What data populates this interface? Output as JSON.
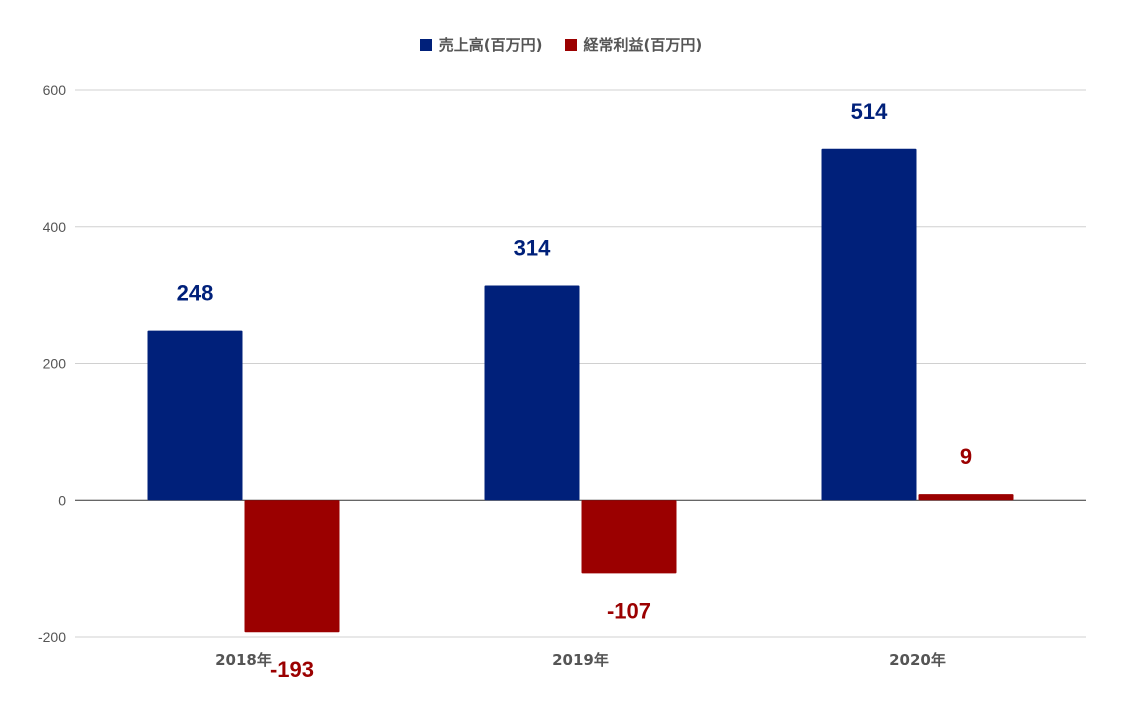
{
  "chart_data": {
    "type": "bar",
    "categories": [
      "2018年",
      "2019年",
      "2020年"
    ],
    "series": [
      {
        "name": "売上高(百万円)",
        "values": [
          248,
          314,
          514
        ],
        "color": "#00207a"
      },
      {
        "name": "経常利益(百万円)",
        "values": [
          -193,
          -107,
          9
        ],
        "color": "#9b0000"
      }
    ],
    "yticks": [
      600,
      400,
      200,
      0,
      -200
    ],
    "ylim": [
      -200,
      600
    ],
    "grid": true,
    "legend_position": "top-center"
  }
}
